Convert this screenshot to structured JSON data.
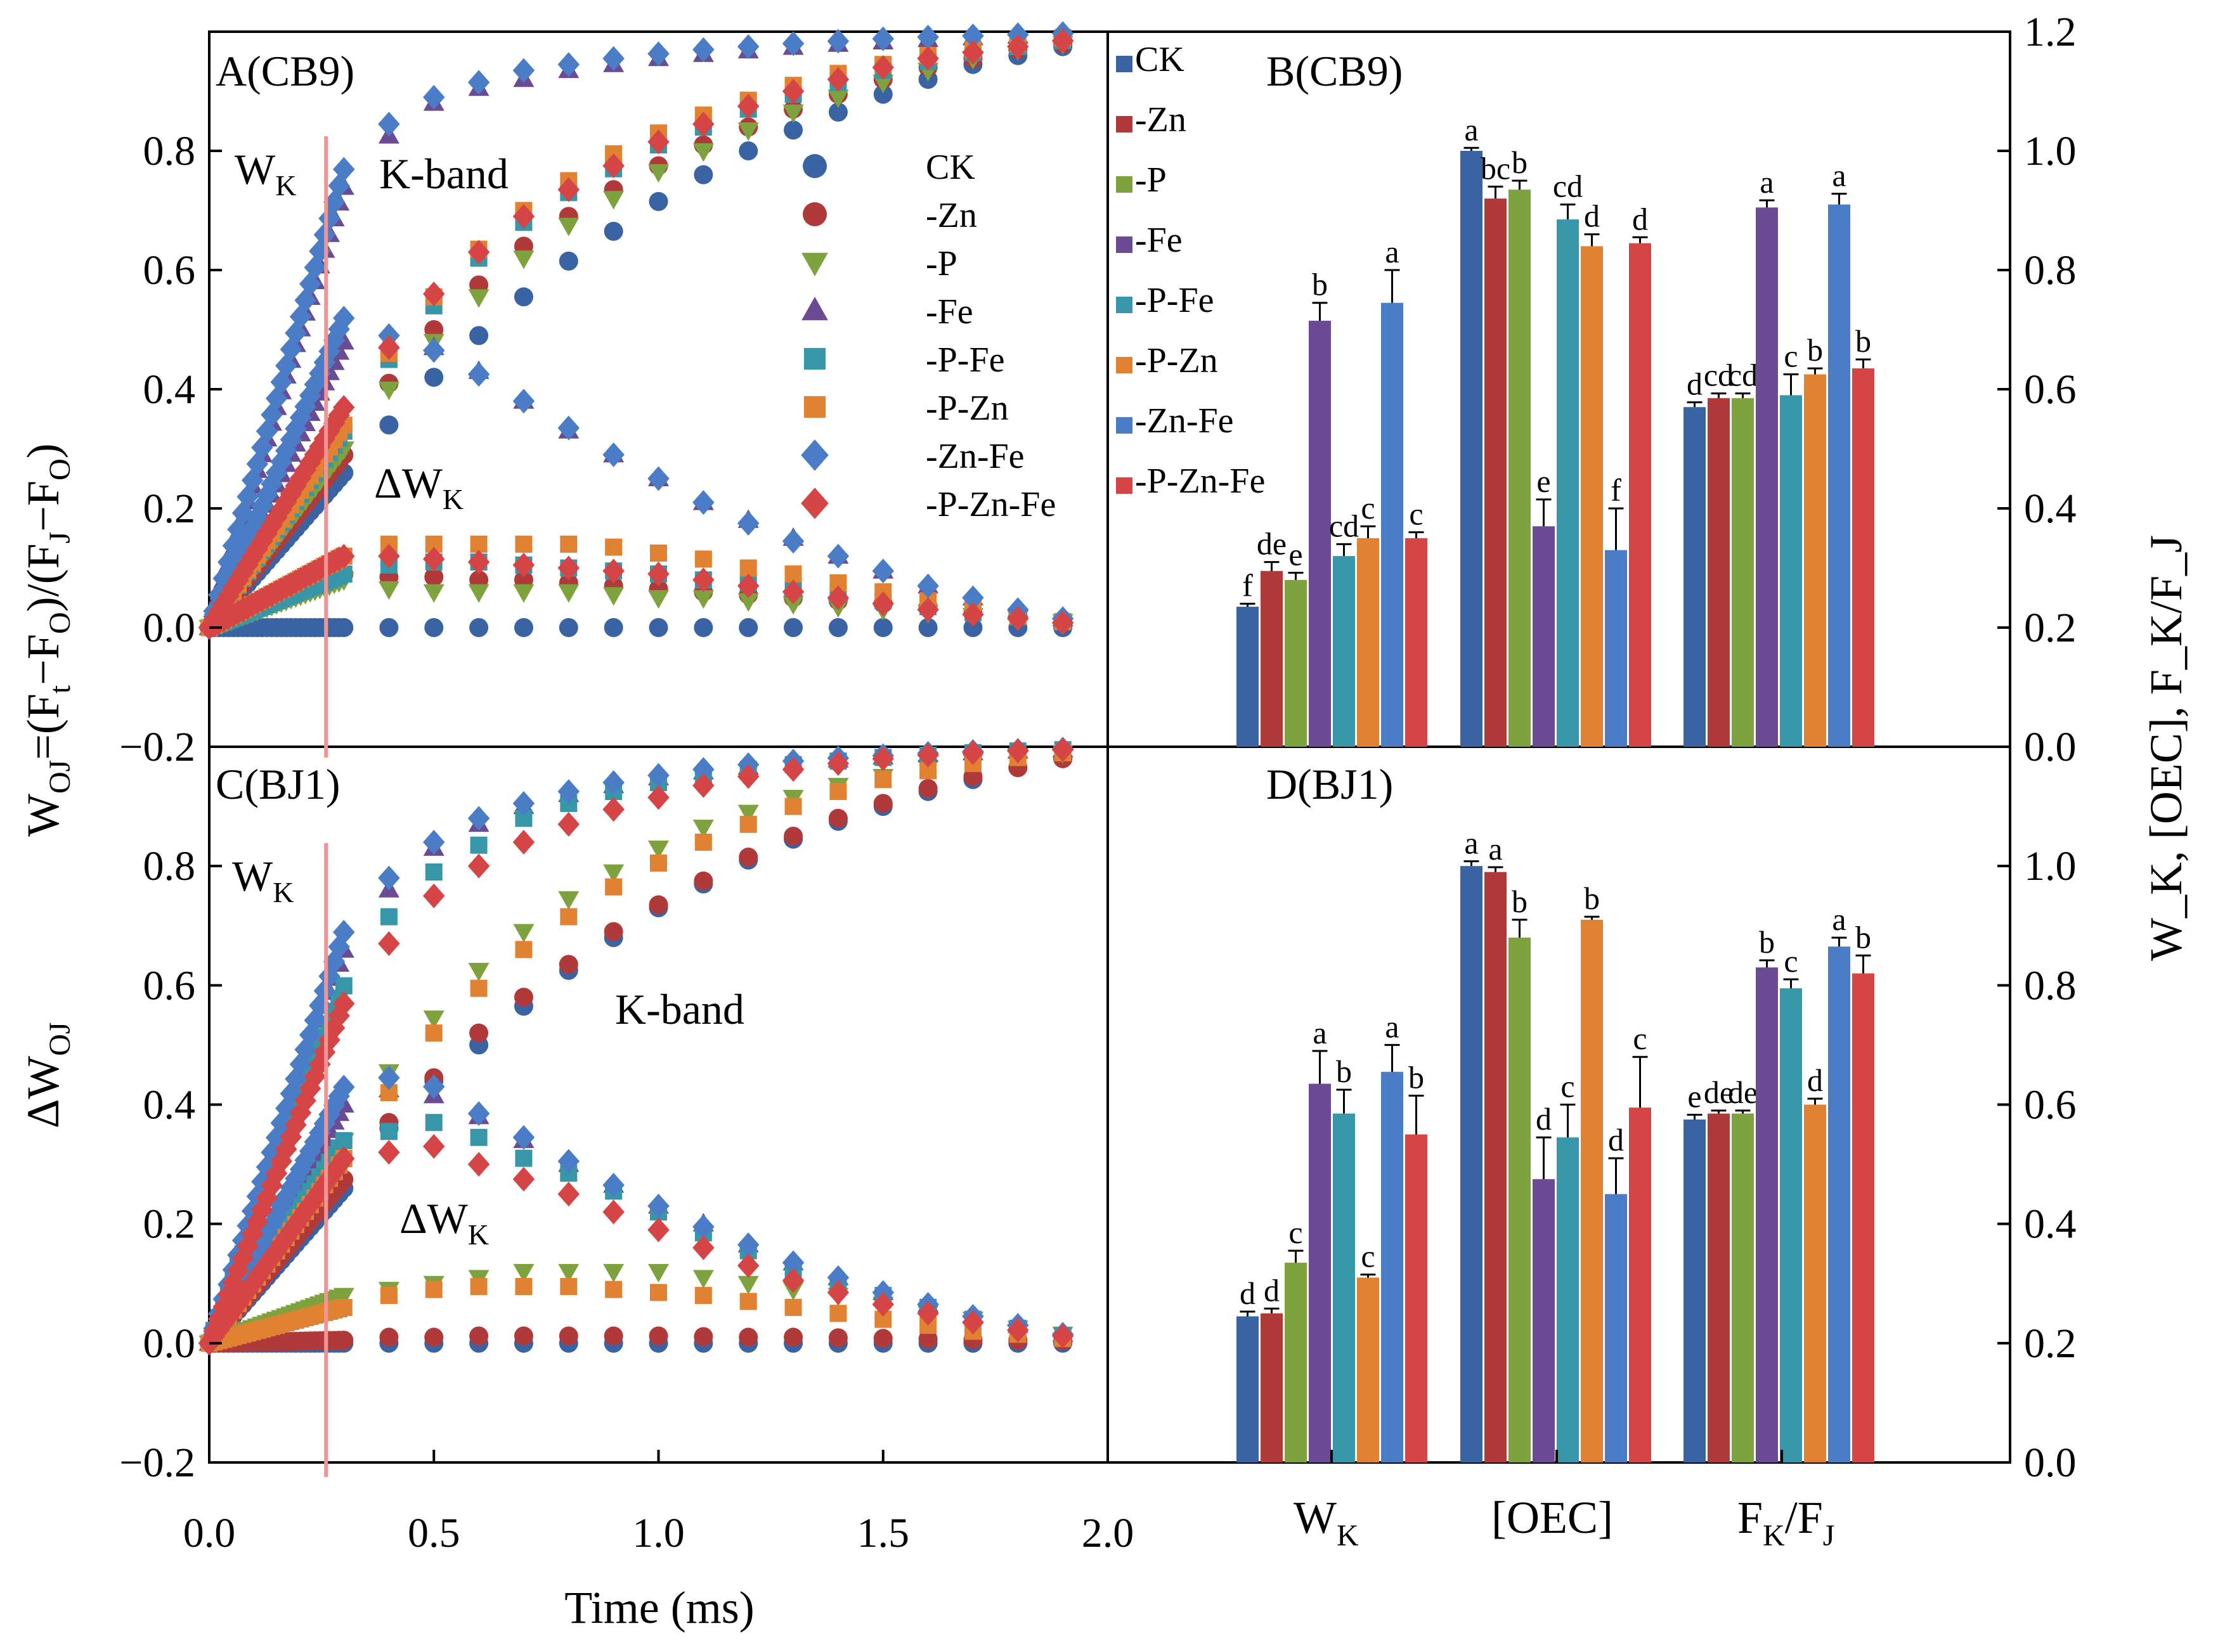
{
  "chart_data": [
    {
      "panel": "A",
      "type": "scatter",
      "title": "A(CB9)",
      "xlabel": "",
      "ylabel": "Wₒⱼ=(Fₜ−Fₒ)/(Fⱼ−Fₒ)",
      "xlim": [
        0,
        2.0
      ],
      "ylim": [
        -0.2,
        1.0
      ],
      "yticks": [
        "−0.2",
        "0.0",
        "0.2",
        "0.4",
        "0.6",
        "0.8"
      ],
      "annotations": {
        "wk_main": "W",
        "wk_sub": "K",
        "kband": "K-band",
        "dwk_main": "ΔW",
        "dwk_sub": "K"
      },
      "k_line_x": 0.26,
      "legend": [
        "CK",
        "-Zn",
        "-P",
        "-Fe",
        "-P-Fe",
        "-P-Zn",
        "-Zn-Fe",
        "-P-Zn-Fe"
      ],
      "series_end": {
        "CK": [
          0.0,
          0.26,
          0.34,
          0.42,
          0.49,
          0.555,
          0.615,
          0.665,
          0.715,
          0.76,
          0.8,
          0.835,
          0.865,
          0.895,
          0.92,
          0.945,
          0.96,
          0.975
        ],
        "-Zn": [
          0.0,
          0.29,
          0.41,
          0.5,
          0.575,
          0.64,
          0.69,
          0.735,
          0.775,
          0.81,
          0.84,
          0.87,
          0.895,
          0.92,
          0.94,
          0.955,
          0.97,
          0.98
        ],
        "-P": [
          0.0,
          0.3,
          0.4,
          0.48,
          0.555,
          0.62,
          0.675,
          0.72,
          0.765,
          0.8,
          0.835,
          0.865,
          0.89,
          0.915,
          0.935,
          0.955,
          0.97,
          0.98
        ],
        "-Fe": [
          0.0,
          0.74,
          0.825,
          0.88,
          0.905,
          0.92,
          0.935,
          0.945,
          0.955,
          0.962,
          0.968,
          0.974,
          0.979,
          0.983,
          0.987,
          0.99,
          0.993,
          0.995
        ],
        "-P-Fe": [
          0.0,
          0.33,
          0.45,
          0.54,
          0.62,
          0.68,
          0.73,
          0.77,
          0.81,
          0.84,
          0.87,
          0.895,
          0.915,
          0.935,
          0.95,
          0.965,
          0.975,
          0.985
        ],
        "-P-Zn": [
          0.0,
          0.34,
          0.46,
          0.555,
          0.635,
          0.7,
          0.75,
          0.795,
          0.83,
          0.86,
          0.885,
          0.91,
          0.93,
          0.945,
          0.96,
          0.97,
          0.98,
          0.99
        ],
        "-Zn-Fe": [
          0.0,
          0.77,
          0.845,
          0.89,
          0.915,
          0.935,
          0.945,
          0.955,
          0.963,
          0.97,
          0.975,
          0.98,
          0.984,
          0.988,
          0.991,
          0.993,
          0.995,
          0.997
        ],
        "-P-Zn-Fe": [
          0.0,
          0.37,
          0.47,
          0.56,
          0.63,
          0.69,
          0.735,
          0.775,
          0.815,
          0.845,
          0.875,
          0.9,
          0.92,
          0.94,
          0.955,
          0.965,
          0.975,
          0.985
        ]
      },
      "delta_end": {
        "CK": [
          0.0,
          0,
          0,
          0,
          0,
          0,
          0,
          0,
          0,
          0,
          0,
          0,
          0,
          0,
          0,
          0,
          0,
          0
        ],
        "-Zn": [
          0.0,
          0.09,
          0.085,
          0.085,
          0.08,
          0.08,
          0.075,
          0.07,
          0.065,
          0.06,
          0.055,
          0.05,
          0.045,
          0.04,
          0.035,
          0.025,
          0.02,
          0.01
        ],
        "-P": [
          0.0,
          0.08,
          0.065,
          0.06,
          0.06,
          0.06,
          0.06,
          0.055,
          0.05,
          0.05,
          0.045,
          0.04,
          0.035,
          0.03,
          0.025,
          0.02,
          0.015,
          0.01
        ],
        "-Fe": [
          0.0,
          0.48,
          0.48,
          0.47,
          0.43,
          0.38,
          0.33,
          0.29,
          0.25,
          0.21,
          0.18,
          0.15,
          0.12,
          0.095,
          0.07,
          0.05,
          0.03,
          0.015
        ],
        "-P-Fe": [
          0.0,
          0.09,
          0.105,
          0.11,
          0.11,
          0.105,
          0.1,
          0.095,
          0.09,
          0.08,
          0.075,
          0.065,
          0.055,
          0.045,
          0.035,
          0.025,
          0.018,
          0.01
        ],
        "-P-Zn": [
          0.0,
          0.12,
          0.14,
          0.14,
          0.14,
          0.14,
          0.14,
          0.135,
          0.125,
          0.115,
          0.1,
          0.09,
          0.075,
          0.06,
          0.045,
          0.032,
          0.02,
          0.01
        ],
        "-Zn-Fe": [
          0.0,
          0.52,
          0.49,
          0.465,
          0.425,
          0.38,
          0.335,
          0.29,
          0.25,
          0.21,
          0.175,
          0.145,
          0.12,
          0.095,
          0.07,
          0.05,
          0.03,
          0.015
        ],
        "-P-Zn-Fe": [
          0.0,
          0.12,
          0.12,
          0.115,
          0.11,
          0.105,
          0.1,
          0.095,
          0.09,
          0.08,
          0.07,
          0.06,
          0.05,
          0.04,
          0.03,
          0.022,
          0.015,
          0.008
        ]
      }
    },
    {
      "panel": "B",
      "type": "bar",
      "title": "B(CB9)",
      "categories": [
        "W_K",
        "[OEC]",
        "F_K/F_J"
      ],
      "ylim": [
        0,
        1.2
      ],
      "yticks": [
        "0.0",
        "0.2",
        "0.4",
        "0.6",
        "0.8",
        "1.0",
        "1.2"
      ],
      "legend": [
        "CK",
        "-Zn",
        "-P",
        "-Fe",
        "-P-Fe",
        "-P-Zn",
        "-Zn-Fe",
        "-P-Zn-Fe"
      ],
      "series": [
        {
          "name": "CK",
          "values": [
            0.235,
            1.0,
            0.57
          ],
          "errors": [
            0.005,
            0.005,
            0.008
          ],
          "letters": [
            "f",
            "a",
            "d"
          ]
        },
        {
          "name": "-Zn",
          "values": [
            0.295,
            0.92,
            0.585
          ],
          "errors": [
            0.015,
            0.02,
            0.008
          ],
          "letters": [
            "de",
            "bc",
            "cd"
          ]
        },
        {
          "name": "-P",
          "values": [
            0.28,
            0.935,
            0.585
          ],
          "errors": [
            0.012,
            0.015,
            0.008
          ],
          "letters": [
            "e",
            "b",
            "cd"
          ]
        },
        {
          "name": "-Fe",
          "values": [
            0.715,
            0.37,
            0.905
          ],
          "errors": [
            0.03,
            0.045,
            0.012
          ],
          "letters": [
            "b",
            "e",
            "a"
          ]
        },
        {
          "name": "-P-Fe",
          "values": [
            0.32,
            0.885,
            0.59
          ],
          "errors": [
            0.02,
            0.025,
            0.035
          ],
          "letters": [
            "cd",
            "cd",
            "c"
          ]
        },
        {
          "name": "-P-Zn",
          "values": [
            0.35,
            0.84,
            0.625
          ],
          "errors": [
            0.02,
            0.02,
            0.01
          ],
          "letters": [
            "c",
            "d",
            "b"
          ]
        },
        {
          "name": "-Zn-Fe",
          "values": [
            0.745,
            0.33,
            0.91
          ],
          "errors": [
            0.055,
            0.07,
            0.018
          ],
          "letters": [
            "a",
            "f",
            "a"
          ]
        },
        {
          "name": "-P-Zn-Fe",
          "values": [
            0.35,
            0.845,
            0.635
          ],
          "errors": [
            0.01,
            0.01,
            0.015
          ],
          "letters": [
            "c",
            "d",
            "b"
          ]
        }
      ]
    },
    {
      "panel": "C",
      "type": "scatter",
      "title": "C(BJ1)",
      "xlabel": "Time (ms)",
      "ylabel": "ΔWₒⱼ",
      "xlim": [
        0,
        2.0
      ],
      "ylim": [
        -0.2,
        1.0
      ],
      "xticks": [
        "0.0",
        "0.5",
        "1.0",
        "1.5",
        "2.0"
      ],
      "yticks": [
        "−0.2",
        "0.0",
        "0.2",
        "0.4",
        "0.6",
        "0.8"
      ],
      "annotations": {
        "wk_main": "W",
        "wk_sub": "K",
        "kband": "K-band",
        "dwk_main": "ΔW",
        "dwk_sub": "K"
      },
      "k_line_x": 0.26,
      "series_end": {
        "CK": [
          0.0,
          0.26,
          0.36,
          0.44,
          0.5,
          0.565,
          0.625,
          0.68,
          0.73,
          0.77,
          0.81,
          0.845,
          0.875,
          0.9,
          0.925,
          0.945,
          0.965,
          0.98
        ],
        "-Zn": [
          0.0,
          0.275,
          0.37,
          0.445,
          0.52,
          0.58,
          0.635,
          0.69,
          0.735,
          0.775,
          0.815,
          0.85,
          0.88,
          0.905,
          0.93,
          0.95,
          0.965,
          0.98
        ],
        "-P": [
          0.0,
          0.34,
          0.455,
          0.545,
          0.625,
          0.69,
          0.745,
          0.79,
          0.83,
          0.865,
          0.89,
          0.915,
          0.935,
          0.95,
          0.965,
          0.975,
          0.985,
          0.99
        ],
        "-Fe": [
          0.0,
          0.66,
          0.76,
          0.83,
          0.87,
          0.9,
          0.92,
          0.935,
          0.948,
          0.958,
          0.966,
          0.973,
          0.978,
          0.983,
          0.987,
          0.99,
          0.993,
          0.995
        ],
        "-P-Fe": [
          0.0,
          0.6,
          0.715,
          0.79,
          0.835,
          0.88,
          0.905,
          0.925,
          0.94,
          0.952,
          0.962,
          0.97,
          0.976,
          0.982,
          0.986,
          0.99,
          0.993,
          0.995
        ],
        "-P-Zn": [
          0.0,
          0.31,
          0.42,
          0.52,
          0.595,
          0.66,
          0.715,
          0.765,
          0.805,
          0.84,
          0.87,
          0.9,
          0.925,
          0.945,
          0.96,
          0.972,
          0.982,
          0.99
        ],
        "-Zn-Fe": [
          0.0,
          0.69,
          0.78,
          0.84,
          0.88,
          0.905,
          0.925,
          0.94,
          0.952,
          0.962,
          0.97,
          0.976,
          0.981,
          0.985,
          0.989,
          0.992,
          0.994,
          0.996
        ],
        "-P-Zn-Fe": [
          0.0,
          0.57,
          0.67,
          0.75,
          0.8,
          0.84,
          0.87,
          0.895,
          0.915,
          0.935,
          0.95,
          0.962,
          0.972,
          0.98,
          0.986,
          0.99,
          0.993,
          0.995
        ]
      },
      "delta_end": {
        "CK": [
          0.0,
          0,
          0,
          0,
          0,
          0,
          0,
          0,
          0,
          0,
          0,
          0,
          0,
          0,
          0,
          0,
          0,
          0
        ],
        "-Zn": [
          0.0,
          0.005,
          0.01,
          0.01,
          0.012,
          0.012,
          0.012,
          0.012,
          0.012,
          0.011,
          0.01,
          0.01,
          0.009,
          0.008,
          0.007,
          0.006,
          0.005,
          0.004
        ],
        "-P": [
          0.0,
          0.08,
          0.09,
          0.1,
          0.11,
          0.12,
          0.12,
          0.12,
          0.12,
          0.11,
          0.1,
          0.09,
          0.08,
          0.065,
          0.05,
          0.04,
          0.025,
          0.015
        ],
        "-Fe": [
          0.0,
          0.4,
          0.425,
          0.415,
          0.38,
          0.34,
          0.3,
          0.265,
          0.23,
          0.2,
          0.165,
          0.135,
          0.11,
          0.085,
          0.065,
          0.045,
          0.03,
          0.015
        ],
        "-P-Fe": [
          0.0,
          0.34,
          0.355,
          0.37,
          0.345,
          0.31,
          0.285,
          0.255,
          0.22,
          0.185,
          0.155,
          0.125,
          0.1,
          0.08,
          0.06,
          0.04,
          0.025,
          0.012
        ],
        "-P-Zn": [
          0.0,
          0.06,
          0.08,
          0.09,
          0.095,
          0.095,
          0.095,
          0.09,
          0.085,
          0.08,
          0.07,
          0.06,
          0.05,
          0.04,
          0.03,
          0.02,
          0.015,
          0.008
        ],
        "-Zn-Fe": [
          0.0,
          0.43,
          0.445,
          0.43,
          0.385,
          0.345,
          0.305,
          0.265,
          0.23,
          0.195,
          0.165,
          0.135,
          0.11,
          0.085,
          0.065,
          0.045,
          0.03,
          0.015
        ],
        "-P-Zn-Fe": [
          0.0,
          0.31,
          0.32,
          0.33,
          0.3,
          0.275,
          0.25,
          0.22,
          0.19,
          0.16,
          0.13,
          0.105,
          0.085,
          0.065,
          0.05,
          0.035,
          0.022,
          0.012
        ]
      }
    },
    {
      "panel": "D",
      "type": "bar",
      "title": "D(BJ1)",
      "categories": [
        "W_K",
        "[OEC]",
        "F_K/F_J"
      ],
      "ylim": [
        0,
        1.2
      ],
      "yticks": [
        "0.0",
        "0.2",
        "0.4",
        "0.6",
        "0.8",
        "1.0"
      ],
      "series": [
        {
          "name": "CK",
          "values": [
            0.245,
            1.0,
            0.575
          ],
          "errors": [
            0.008,
            0.008,
            0.008
          ],
          "letters": [
            "d",
            "a",
            "e"
          ]
        },
        {
          "name": "-Zn",
          "values": [
            0.25,
            0.99,
            0.585
          ],
          "errors": [
            0.008,
            0.008,
            0.005
          ],
          "letters": [
            "d",
            "a",
            "de"
          ]
        },
        {
          "name": "-P",
          "values": [
            0.335,
            0.88,
            0.585
          ],
          "errors": [
            0.02,
            0.03,
            0.005
          ],
          "letters": [
            "c",
            "b",
            "de"
          ]
        },
        {
          "name": "-Fe",
          "values": [
            0.635,
            0.475,
            0.83
          ],
          "errors": [
            0.055,
            0.07,
            0.012
          ],
          "letters": [
            "a",
            "d",
            "b"
          ]
        },
        {
          "name": "-P-Fe",
          "values": [
            0.585,
            0.545,
            0.795
          ],
          "errors": [
            0.04,
            0.055,
            0.015
          ],
          "letters": [
            "b",
            "c",
            "c"
          ]
        },
        {
          "name": "-P-Zn",
          "values": [
            0.31,
            0.91,
            0.6
          ],
          "errors": [
            0.005,
            0.005,
            0.01
          ],
          "letters": [
            "c",
            "b",
            "d"
          ]
        },
        {
          "name": "-Zn-Fe",
          "values": [
            0.655,
            0.45,
            0.865
          ],
          "errors": [
            0.045,
            0.06,
            0.015
          ],
          "letters": [
            "a",
            "d",
            "a"
          ]
        },
        {
          "name": "-P-Zn-Fe",
          "values": [
            0.55,
            0.595,
            0.82
          ],
          "errors": [
            0.065,
            0.085,
            0.03
          ],
          "letters": [
            "b",
            "c",
            "b"
          ]
        }
      ]
    }
  ],
  "right_axis": {
    "ylabel": "W_K, [OEC], F_K/F_J"
  },
  "bottom_axis": {
    "xlabel": "Time (ms)",
    "group_labels": {
      "wk_main": "W",
      "wk_sub": "K",
      "oec": "[OEC]",
      "fk_main": "F",
      "fk_sub": "K",
      "slash": "/F",
      "fj_sub": "J"
    }
  },
  "left_axis": {
    "top_main": "W",
    "top_sub": "OJ",
    "top_expr": "=(F",
    "t_sub": "t",
    "minus": "−F",
    "o_sub": "O",
    "close": ")/(F",
    "j_sub": "J",
    "minus2": "−F",
    "o_sub2": "O",
    "end": ")",
    "bottom_main": "ΔW",
    "bottom_sub": "OJ"
  },
  "colors": {
    "CK": "#3a63a4",
    "-Zn": "#b03a3a",
    "-P": "#7da23e",
    "-Fe": "#6b4b94",
    "-P-Fe": "#3796a8",
    "-P-Zn": "#e08232",
    "-Zn-Fe": "#4a7dc6",
    "-P-Zn-Fe": "#d64545",
    "k_line": "#f29494"
  },
  "markers": {
    "CK": "circle",
    "-Zn": "circle",
    "-P": "triangle-down",
    "-Fe": "triangle-up",
    "-P-Fe": "square",
    "-P-Zn": "square",
    "-Zn-Fe": "diamond",
    "-P-Zn-Fe": "diamond"
  }
}
